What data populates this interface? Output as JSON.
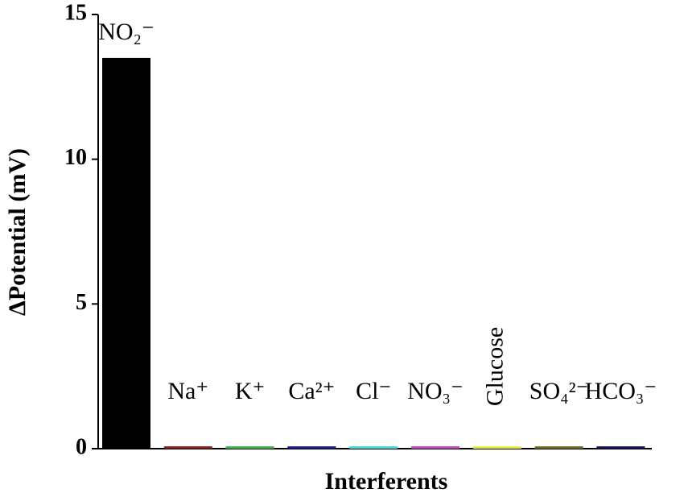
{
  "chart_data": {
    "type": "bar",
    "xlabel": "Interferents",
    "ylabel": "ΔPotential (mV)",
    "categories": [
      "NO₂⁻",
      "Na⁺",
      "K⁺",
      "Ca²⁺",
      "Cl⁻",
      "NO₃⁻",
      "Glucose",
      "SO₄²⁻",
      "HCO₃⁻"
    ],
    "values": [
      13.5,
      0.08,
      0.08,
      0.08,
      0.08,
      0.08,
      0.08,
      0.08,
      0.08
    ],
    "colors": [
      "#000000",
      "#8b1a1a",
      "#3cb043",
      "#1a1a8c",
      "#40d8d8",
      "#c040c0",
      "#e8e840",
      "#6b6b1a",
      "#14145a"
    ],
    "ylim": [
      0,
      15
    ],
    "yticks": [
      0,
      5,
      10,
      15
    ]
  }
}
